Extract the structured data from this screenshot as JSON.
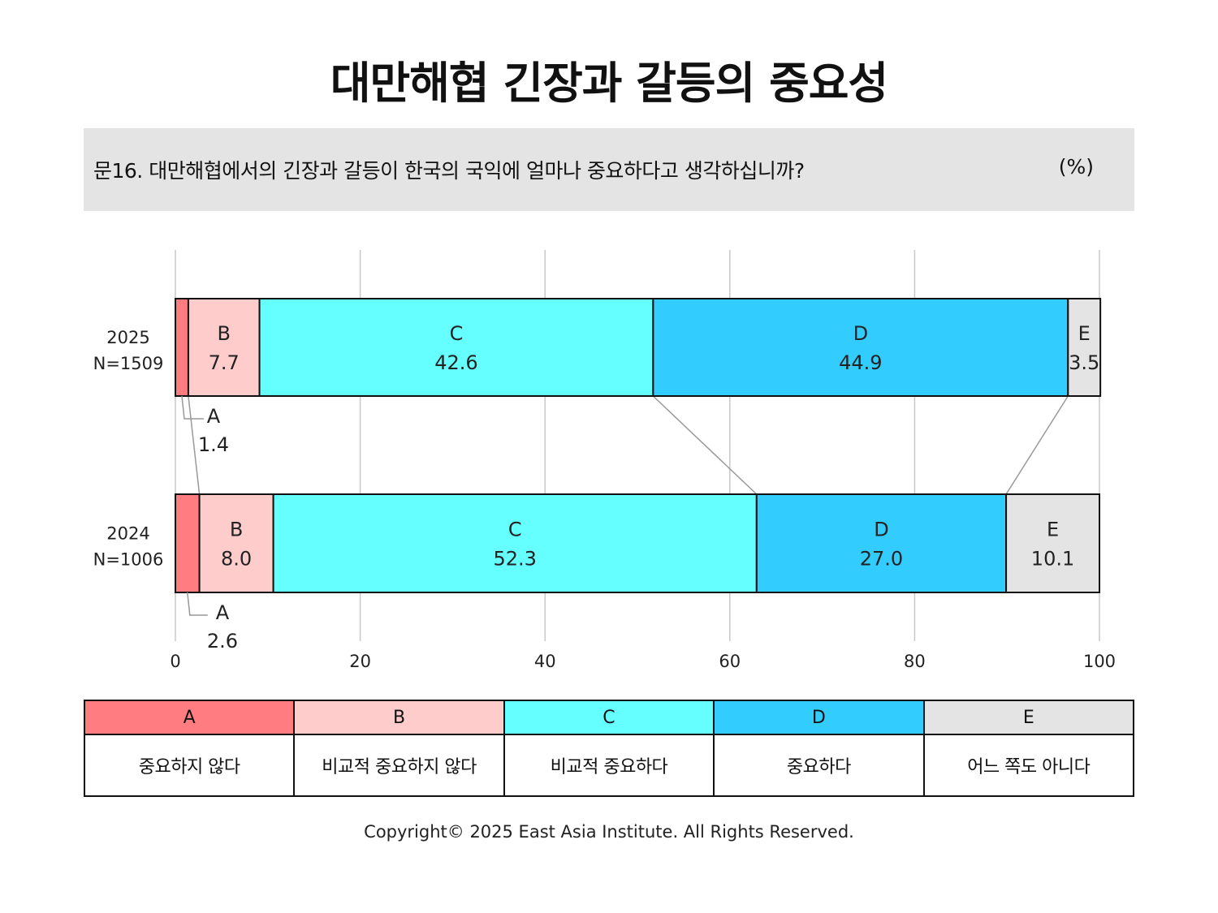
{
  "title": "대만해협 긴장과 갈등의 중요성",
  "question": "문16. 대만해협에서의 긴장과 갈등이 한국의 국익에 얼마나 중요하다고 생각하십니까?",
  "unit": "(%)",
  "copyright": "Copyright© 2025 East Asia Institute. All Rights Reserved.",
  "colors": {
    "A": "#ff7c80",
    "B": "#ffcccc",
    "C": "#66ffff",
    "D": "#33ccff",
    "E": "#e5e4e5"
  },
  "legend": [
    {
      "key": "A",
      "label": "중요하지 않다"
    },
    {
      "key": "B",
      "label": "비교적 중요하지 않다"
    },
    {
      "key": "C",
      "label": "비교적 중요하다"
    },
    {
      "key": "D",
      "label": "중요하다"
    },
    {
      "key": "E",
      "label": "어느 쪽도 아니다"
    }
  ],
  "chart_data": {
    "type": "bar",
    "orientation": "horizontal",
    "stacked": true,
    "categories": [
      "2025\nN=1509",
      "2024\nN=1006"
    ],
    "category_years": [
      "2025",
      "2024"
    ],
    "category_sizes": [
      "N=1509",
      "N=1006"
    ],
    "series": [
      {
        "name": "A",
        "values": [
          1.4,
          2.6
        ]
      },
      {
        "name": "B",
        "values": [
          7.7,
          8.0
        ]
      },
      {
        "name": "C",
        "values": [
          42.6,
          52.3
        ]
      },
      {
        "name": "D",
        "values": [
          44.9,
          27.0
        ]
      },
      {
        "name": "E",
        "values": [
          3.5,
          10.1
        ]
      }
    ],
    "xlim": [
      0,
      100
    ],
    "xticks": [
      0,
      20,
      40,
      60,
      80,
      100
    ],
    "grid": true,
    "legend_position": "bottom"
  }
}
